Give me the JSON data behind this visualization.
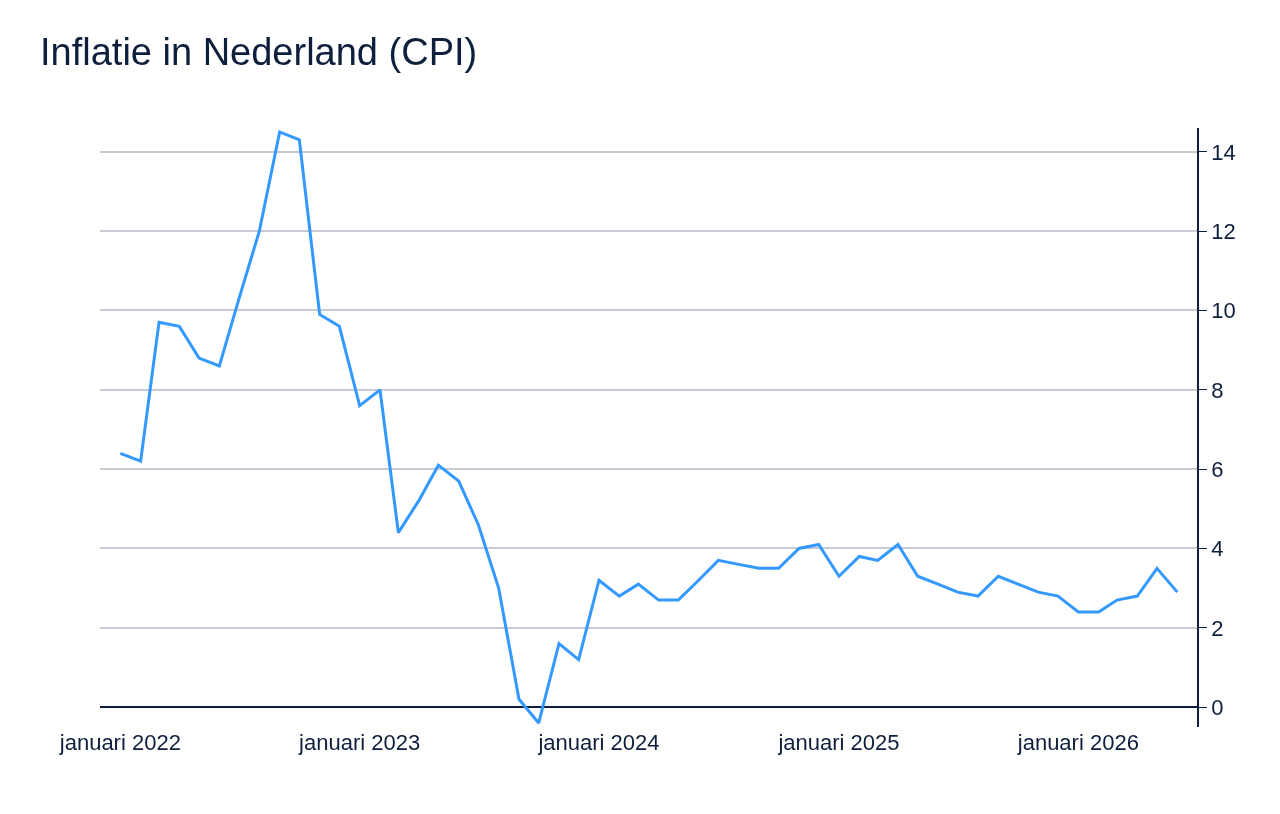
{
  "chart_data": {
    "type": "line",
    "title": "Inflatie in Nederland (CPI)",
    "x": [
      "2022-01",
      "2022-02",
      "2022-03",
      "2022-04",
      "2022-05",
      "2022-06",
      "2022-07",
      "2022-08",
      "2022-09",
      "2022-10",
      "2022-11",
      "2022-12",
      "2023-01",
      "2023-02",
      "2023-03",
      "2023-04",
      "2023-05",
      "2023-06",
      "2023-07",
      "2023-08",
      "2023-09",
      "2023-10",
      "2023-11",
      "2023-12",
      "2024-01",
      "2024-02",
      "2024-03",
      "2024-04",
      "2024-05",
      "2024-06",
      "2024-07",
      "2024-08",
      "2024-09",
      "2024-10",
      "2024-11",
      "2024-12",
      "2025-01",
      "2025-02",
      "2025-03",
      "2025-04",
      "2025-05",
      "2025-06",
      "2025-07",
      "2025-08",
      "2025-09",
      "2025-10",
      "2025-11",
      "2025-12",
      "2026-01",
      "2026-02",
      "2026-03",
      "2026-04",
      "2026-05",
      "2026-06"
    ],
    "series": [
      {
        "color": "#3399ff",
        "values": [
          6.4,
          6.2,
          9.7,
          9.6,
          8.8,
          8.6,
          10.3,
          12.0,
          14.5,
          14.3,
          9.9,
          9.6,
          7.6,
          8.0,
          4.4,
          5.2,
          6.1,
          5.7,
          4.6,
          3.0,
          0.2,
          -0.4,
          1.6,
          1.2,
          3.2,
          2.8,
          3.1,
          2.7,
          2.7,
          3.2,
          3.7,
          3.6,
          3.5,
          3.5,
          4.0,
          4.1,
          3.3,
          3.8,
          3.7,
          4.1,
          3.3,
          3.1,
          2.9,
          2.8,
          3.3,
          3.1,
          2.9,
          2.8,
          2.4,
          2.4,
          2.7,
          2.8,
          3.5,
          2.9
        ]
      }
    ],
    "xlim": [
      "2021-12-01",
      "2026-07-01"
    ],
    "xticks": [
      {
        "value": "2022-01",
        "label": "januari 2022"
      },
      {
        "value": "2023-01",
        "label": "januari 2023"
      },
      {
        "value": "2024-01",
        "label": "januari 2024"
      },
      {
        "value": "2025-01",
        "label": "januari 2025"
      },
      {
        "value": "2026-01",
        "label": "januari 2026"
      }
    ],
    "ylim": [
      -0.5,
      14.6
    ],
    "yticks": [
      0,
      2,
      4,
      6,
      8,
      10,
      12,
      14
    ],
    "grid": "y",
    "marker": "none",
    "line_style": "solid"
  }
}
